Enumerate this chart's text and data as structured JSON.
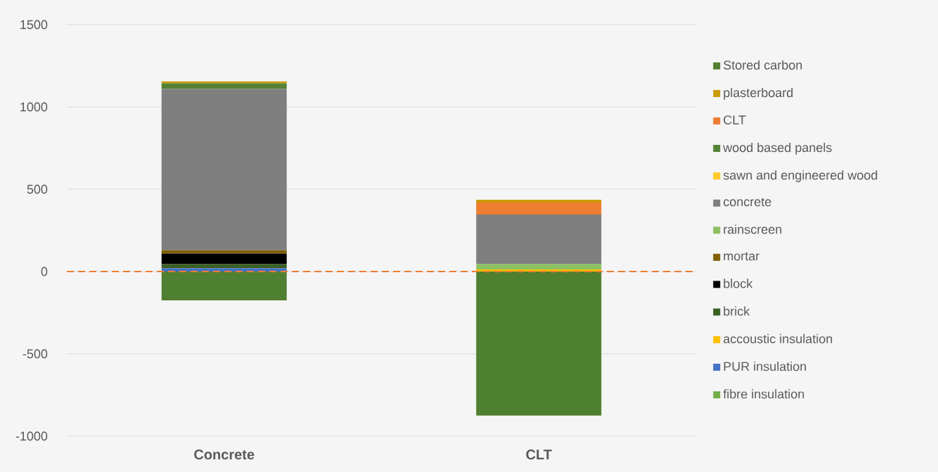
{
  "chart_data": {
    "type": "bar",
    "stacked": true,
    "categories": [
      "Concrete",
      "CLT"
    ],
    "series": [
      {
        "name": "fibre insulation",
        "color": "#70ad47",
        "values": [
          null,
          null
        ]
      },
      {
        "name": "PUR insulation",
        "color": "#4472c4",
        "values": [
          20,
          null
        ]
      },
      {
        "name": "accoustic insulation",
        "color": "#ffc000",
        "values": [
          null,
          13
        ]
      },
      {
        "name": "brick",
        "color": "#3b5f23",
        "values": [
          25,
          null
        ]
      },
      {
        "name": "block",
        "color": "#000000",
        "values": [
          64,
          null
        ]
      },
      {
        "name": "mortar",
        "color": "#806000",
        "values": [
          20,
          null
        ]
      },
      {
        "name": "rainscreen",
        "color": "#8cc063",
        "values": [
          null,
          33
        ]
      },
      {
        "name": "concrete",
        "color": "#7f7f7f",
        "values": [
          980,
          300
        ]
      },
      {
        "name": "sawn and engineered wood",
        "color": "#ffca2c",
        "values": [
          null,
          null
        ]
      },
      {
        "name": "wood based panels",
        "color": "#548235",
        "values": [
          34,
          null
        ]
      },
      {
        "name": "CLT",
        "color": "#ed7d31",
        "values": [
          null,
          73
        ]
      },
      {
        "name": "plasterboard",
        "color": "#c99a06",
        "values": [
          12,
          17
        ]
      },
      {
        "name": "Stored carbon",
        "color": "#4f7f30",
        "values": [
          -175,
          -875
        ]
      }
    ],
    "ylim": [
      -1000,
      1500
    ],
    "yticks": [
      -1000,
      -500,
      0,
      500,
      1000,
      1500
    ],
    "grid": "y",
    "legend": "right",
    "ref_lines": [
      {
        "axis": "y",
        "value": 0,
        "color": "#ed7d31",
        "line_style": "dashed"
      }
    ]
  }
}
